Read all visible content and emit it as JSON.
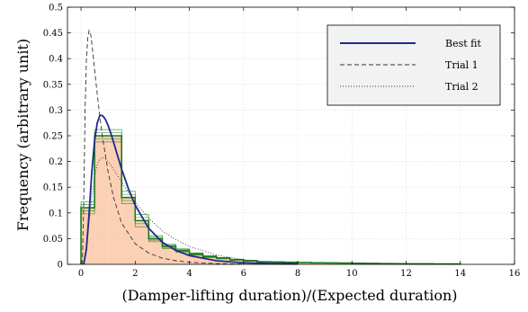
{
  "chart_data": {
    "type": "histogram-with-curves",
    "xlabel": "(Damper-lifting duration)/(Expected duration)",
    "ylabel": "Frequency (arbitrary unit)",
    "xlim": [
      -0.5,
      16
    ],
    "ylim": [
      0,
      0.5
    ],
    "xticks": [
      0,
      2,
      4,
      6,
      8,
      10,
      12,
      14,
      16
    ],
    "yticks": [
      0,
      0.05,
      0.1,
      0.15,
      0.2,
      0.25,
      0.3,
      0.35,
      0.4,
      0.45,
      0.5
    ],
    "legend_position": "top-right",
    "colors": {
      "best_fit": "#1f2a8c",
      "fill": "#fcd0b4",
      "hist_green": "#1a7a1a",
      "trial": "#333333"
    },
    "bins": {
      "width": 0.5,
      "x_start": 0,
      "values": [
        0.11,
        0.25,
        0.25,
        0.13,
        0.085,
        0.05,
        0.035,
        0.027,
        0.02,
        0.015,
        0.012,
        0.009,
        0.007,
        0.005,
        0.0045,
        0.004,
        0.0035,
        0.003,
        0.0028,
        0.0025,
        0.002,
        0.0018,
        0.0015,
        0.0012,
        0.001,
        0.0009,
        0.0008,
        0.0007
      ]
    },
    "series": [
      {
        "name": "Best fit",
        "style": "solid",
        "x": [
          0.1,
          0.2,
          0.3,
          0.4,
          0.5,
          0.6,
          0.7,
          0.8,
          0.9,
          1.0,
          1.1,
          1.2,
          1.3,
          1.5,
          1.75,
          2.0,
          2.5,
          3.0,
          3.5,
          4.0,
          5.0,
          6.0,
          7.0,
          8.0
        ],
        "y": [
          0.0,
          0.03,
          0.1,
          0.18,
          0.24,
          0.275,
          0.29,
          0.289,
          0.282,
          0.27,
          0.255,
          0.238,
          0.22,
          0.185,
          0.147,
          0.115,
          0.07,
          0.043,
          0.027,
          0.017,
          0.007,
          0.003,
          0.0015,
          0.0008
        ]
      },
      {
        "name": "Trial 1",
        "style": "dashed",
        "x": [
          0.05,
          0.1,
          0.15,
          0.2,
          0.25,
          0.3,
          0.35,
          0.4,
          0.5,
          0.6,
          0.7,
          0.8,
          1.0,
          1.2,
          1.5,
          2.0,
          2.5,
          3.0,
          3.5,
          4.0,
          5.0,
          6.0
        ],
        "y": [
          0.0,
          0.12,
          0.3,
          0.4,
          0.44,
          0.455,
          0.45,
          0.43,
          0.38,
          0.33,
          0.285,
          0.245,
          0.18,
          0.13,
          0.08,
          0.04,
          0.022,
          0.012,
          0.007,
          0.004,
          0.0015,
          0.0005
        ]
      },
      {
        "name": "Trial 2",
        "style": "dotted",
        "x": [
          0.1,
          0.2,
          0.3,
          0.4,
          0.5,
          0.6,
          0.7,
          0.8,
          0.9,
          1.0,
          1.2,
          1.5,
          2.0,
          2.5,
          3.0,
          3.5,
          4.0,
          5.0,
          6.0,
          7.0,
          8.0
        ],
        "y": [
          0.0,
          0.03,
          0.08,
          0.13,
          0.17,
          0.195,
          0.205,
          0.208,
          0.205,
          0.2,
          0.185,
          0.16,
          0.12,
          0.09,
          0.065,
          0.048,
          0.035,
          0.018,
          0.009,
          0.0045,
          0.002
        ]
      }
    ]
  }
}
